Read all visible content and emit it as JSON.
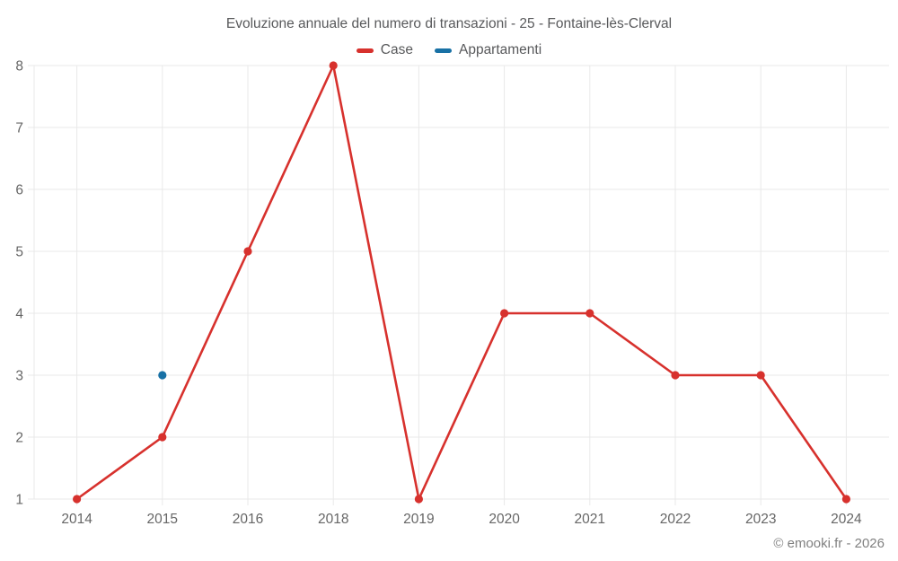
{
  "header": {
    "title": "Evoluzione annuale del numero di transazioni - 25 - Fontaine-lès-Clerval"
  },
  "legend": [
    {
      "label": "Case",
      "color": "#d7312d"
    },
    {
      "label": "Appartamenti",
      "color": "#1871a5"
    }
  ],
  "footer": {
    "copyright": "© emooki.fr - 2026"
  },
  "chart_data": {
    "type": "line",
    "title": "Evoluzione annuale del numero di transazioni - 25 - Fontaine-lès-Clerval",
    "categories": [
      "2014",
      "2015",
      "2016",
      "2018",
      "2019",
      "2020",
      "2021",
      "2022",
      "2023",
      "2024"
    ],
    "series": [
      {
        "name": "Case",
        "color": "#d7312d",
        "values": [
          1,
          2,
          5,
          8,
          1,
          4,
          4,
          3,
          3,
          1
        ]
      },
      {
        "name": "Appartamenti",
        "color": "#1871a5",
        "values": [
          null,
          3,
          null,
          null,
          null,
          null,
          null,
          null,
          null,
          null
        ]
      }
    ],
    "xlabel": "",
    "ylabel": "",
    "ylim": [
      1,
      8
    ],
    "yticks": [
      1,
      2,
      3,
      4,
      5,
      6,
      7,
      8
    ],
    "grid": true,
    "legend_position": "top"
  },
  "style": {
    "grid_color": "#e9e9e9",
    "tick_label_color": "#666666",
    "title_color": "#58595b",
    "copyright_color": "#808080",
    "background": "#ffffff"
  }
}
